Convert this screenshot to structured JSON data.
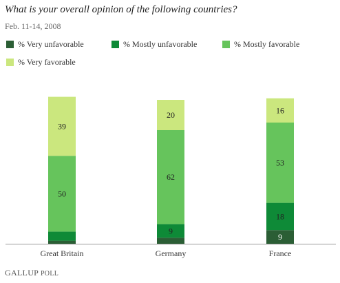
{
  "title": "What is your overall opinion of the following countries?",
  "subtitle": "Feb. 11-14, 2008",
  "footer": {
    "logo_text": "GALLUP POLL",
    "logo_part1": "GALLUP",
    "logo_part2": " POLL"
  },
  "chart_data": {
    "type": "bar",
    "stacked": true,
    "orientation": "vertical",
    "categories": [
      "Great Britain",
      "Germany",
      "France"
    ],
    "series": [
      {
        "name": "% Very unfavorable",
        "values": [
          2,
          4,
          9
        ],
        "labels": [
          "",
          "",
          "9"
        ],
        "color": "#2b5e35"
      },
      {
        "name": "% Mostly unfavorable",
        "values": [
          6,
          9,
          18
        ],
        "labels": [
          "",
          "9",
          "18"
        ],
        "color": "#0e8a37"
      },
      {
        "name": "% Mostly favorable",
        "values": [
          50,
          62,
          53
        ],
        "labels": [
          "50",
          "62",
          "53"
        ],
        "color": "#66c45c"
      },
      {
        "name": "% Very favorable",
        "values": [
          39,
          20,
          16
        ],
        "labels": [
          "39",
          "20",
          "16"
        ],
        "color": "#cbe77e"
      }
    ],
    "ylim": [
      0,
      100
    ],
    "grid": false,
    "legend_position": "top"
  }
}
